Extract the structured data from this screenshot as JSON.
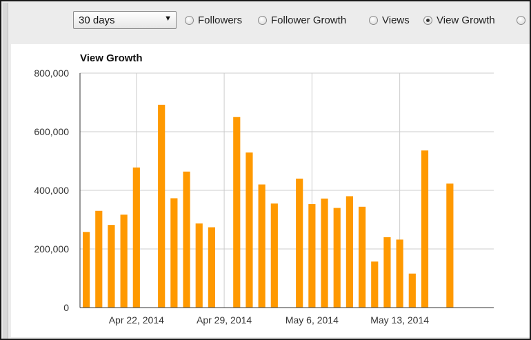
{
  "toolbar": {
    "range_select": {
      "value": "30 days",
      "arrow_icon": "triangle-down-icon"
    },
    "metrics": [
      {
        "label": "Followers",
        "checked": false
      },
      {
        "label": "Follower Growth",
        "checked": false
      },
      {
        "label": "Views",
        "checked": false
      },
      {
        "label": "View Growth",
        "checked": true
      },
      {
        "label": "",
        "checked": false
      }
    ]
  },
  "chart_data": {
    "type": "bar",
    "title": "View Growth",
    "xlabel": "",
    "ylabel": "",
    "ylim": [
      0,
      800000
    ],
    "y_ticks": [
      0,
      200000,
      400000,
      600000,
      800000
    ],
    "y_tick_labels": [
      "0",
      "200,000",
      "400,000",
      "600,000",
      "800,000"
    ],
    "x_tick_labels": [
      "Apr 22, 2014",
      "Apr 29, 2014",
      "May 6, 2014",
      "May 13, 2014"
    ],
    "x_tick_dates": [
      "2014-04-22",
      "2014-04-29",
      "2014-05-06",
      "2014-05-13"
    ],
    "grid": true,
    "bar_color": "#ff9900",
    "x": [
      "2014-04-18",
      "2014-04-19",
      "2014-04-20",
      "2014-04-21",
      "2014-04-22",
      "2014-04-23",
      "2014-04-24",
      "2014-04-25",
      "2014-04-26",
      "2014-04-27",
      "2014-04-28",
      "2014-04-29",
      "2014-04-30",
      "2014-05-01",
      "2014-05-02",
      "2014-05-03",
      "2014-05-04",
      "2014-05-05",
      "2014-05-06",
      "2014-05-07",
      "2014-05-08",
      "2014-05-09",
      "2014-05-10",
      "2014-05-11",
      "2014-05-12",
      "2014-05-13",
      "2014-05-14",
      "2014-05-15",
      "2014-05-16",
      "2014-05-17",
      "2014-05-18",
      "2014-05-19",
      "2014-05-20"
    ],
    "values": [
      258000,
      330000,
      282000,
      317000,
      478000,
      null,
      692000,
      373000,
      464000,
      287000,
      274000,
      null,
      650000,
      529000,
      420000,
      355000,
      null,
      440000,
      353000,
      372000,
      340000,
      380000,
      344000,
      157000,
      240000,
      232000,
      116000,
      536000,
      null,
      423000,
      null,
      null,
      null
    ]
  }
}
